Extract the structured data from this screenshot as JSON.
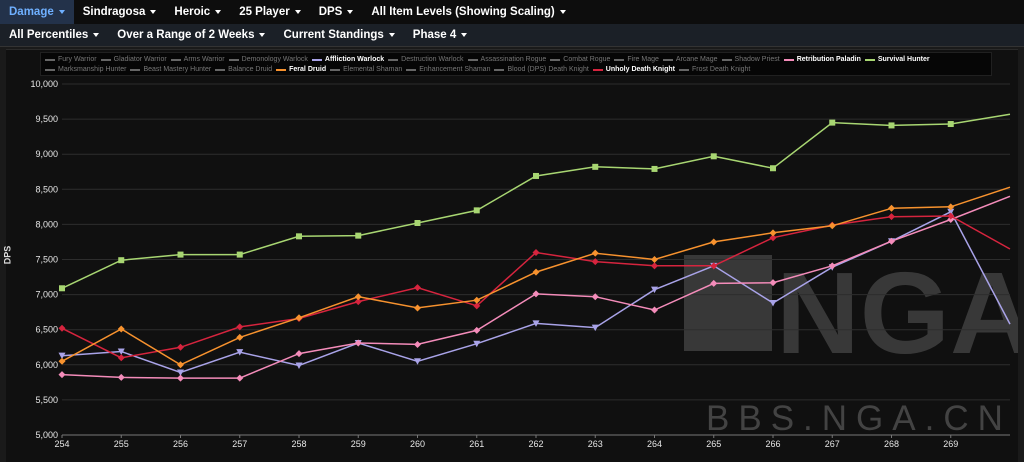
{
  "nav": {
    "row1": [
      "Damage",
      "Sindragosa",
      "Heroic",
      "25 Player",
      "DPS",
      "All Item Levels (Showing Scaling)"
    ],
    "row2": [
      "All Percentiles",
      "Over a Range of 2 Weeks",
      "Current Standings",
      "Phase 4"
    ]
  },
  "legend_row1": [
    {
      "name": "Fury Warrior",
      "on": false
    },
    {
      "name": "Gladiator Warrior",
      "on": false
    },
    {
      "name": "Arms Warrior",
      "on": false
    },
    {
      "name": "Demonology Warlock",
      "on": false
    },
    {
      "name": "Affliction Warlock",
      "on": true,
      "color": "#a9a3e8"
    },
    {
      "name": "Destruction Warlock",
      "on": false
    },
    {
      "name": "Assassination Rogue",
      "on": false
    },
    {
      "name": "Combat Rogue",
      "on": false
    },
    {
      "name": "Fire Mage",
      "on": false
    },
    {
      "name": "Arcane Mage",
      "on": false
    },
    {
      "name": "Shadow Priest",
      "on": false
    },
    {
      "name": "Retribution Paladin",
      "on": true,
      "color": "#f48cba"
    },
    {
      "name": "Survival Hunter",
      "on": true,
      "color": "#a8d672"
    }
  ],
  "legend_row2": [
    {
      "name": "Marksmanship Hunter",
      "on": false
    },
    {
      "name": "Beast Mastery Hunter",
      "on": false
    },
    {
      "name": "Balance Druid",
      "on": false
    },
    {
      "name": "Feral Druid",
      "on": true,
      "color": "#f7922e"
    },
    {
      "name": "Elemental Shaman",
      "on": false
    },
    {
      "name": "Enhancement Shaman",
      "on": false
    },
    {
      "name": "Blood (DPS) Death Knight",
      "on": false
    },
    {
      "name": "Unholy Death Knight",
      "on": true,
      "color": "#d6243e"
    },
    {
      "name": "Frost Death Knight",
      "on": false
    }
  ],
  "watermark": "BBS.NGA.CN",
  "watermark_logo": "NGA",
  "chart_data": {
    "type": "line",
    "ylabel": "DPS",
    "xlabel": "",
    "x": [
      254,
      255,
      256,
      257,
      258,
      259,
      260,
      261,
      262,
      263,
      264,
      265,
      266,
      267,
      268,
      269,
      270
    ],
    "x_tick_labels": [
      "254",
      "255",
      "256",
      "257",
      "258",
      "259",
      "260",
      "261",
      "262",
      "263",
      "264",
      "265",
      "266",
      "267",
      "268",
      "269"
    ],
    "ylim": [
      5000,
      10000
    ],
    "y_ticks": [
      5000,
      5500,
      6000,
      6500,
      7000,
      7500,
      8000,
      8500,
      9000,
      9500,
      10000
    ],
    "y_tick_labels": [
      "5,000",
      "5,500",
      "6,000",
      "6,500",
      "7,000",
      "7,500",
      "8,000",
      "8,500",
      "9,000",
      "9,500",
      "10,000"
    ],
    "series": [
      {
        "name": "Survival Hunter",
        "color": "#a8d672",
        "marker": "square",
        "values": [
          7090,
          7490,
          7570,
          7570,
          7830,
          7840,
          8020,
          8200,
          8690,
          8820,
          8790,
          8970,
          8800,
          9450,
          9410,
          9430,
          9570
        ]
      },
      {
        "name": "Feral Druid",
        "color": "#f7922e",
        "marker": "diamond",
        "values": [
          6050,
          6510,
          6000,
          6390,
          6670,
          6970,
          6810,
          6920,
          7320,
          7590,
          7500,
          7750,
          7880,
          7980,
          8230,
          8250,
          8530
        ]
      },
      {
        "name": "Unholy Death Knight",
        "color": "#d6243e",
        "marker": "diamond",
        "values": [
          6520,
          6100,
          6250,
          6540,
          6660,
          6900,
          7100,
          6840,
          7600,
          7470,
          7410,
          7410,
          7810,
          7990,
          8110,
          8120,
          7650
        ]
      },
      {
        "name": "Retribution Paladin",
        "color": "#f48cba",
        "marker": "diamond",
        "values": [
          5860,
          5820,
          5810,
          5810,
          6160,
          6310,
          6290,
          6490,
          7010,
          6970,
          6780,
          7160,
          7170,
          7410,
          7760,
          8070,
          8400
        ]
      },
      {
        "name": "Affliction Warlock",
        "color": "#a9a3e8",
        "marker": "triangle-down",
        "values": [
          6130,
          6190,
          5890,
          6180,
          5990,
          6310,
          6050,
          6300,
          6590,
          6530,
          7070,
          7410,
          6880,
          7390,
          7760,
          8180,
          6580
        ]
      }
    ]
  }
}
